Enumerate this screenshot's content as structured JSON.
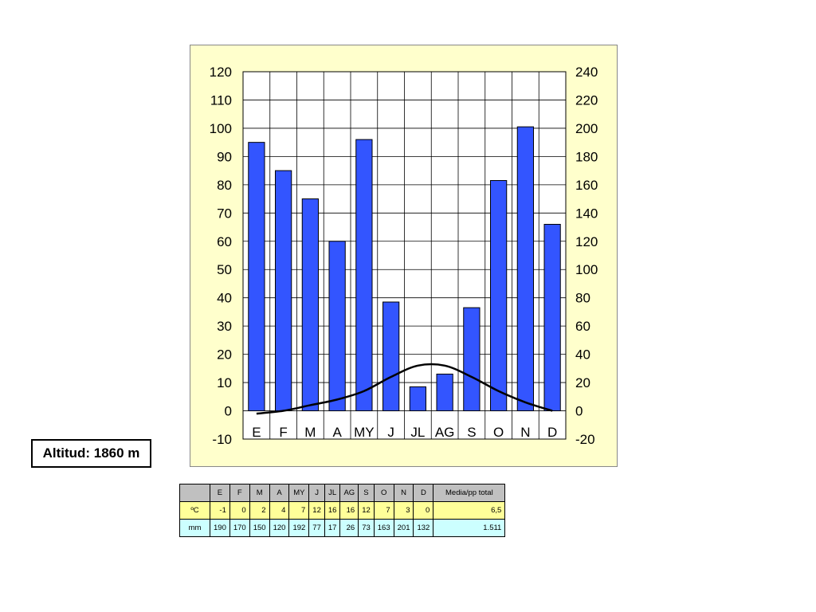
{
  "altitude_label": "Altitud: 1860 m",
  "colors": {
    "panel_bg": "#ffffcc",
    "bar_fill": "#3355ff",
    "line": "#000000",
    "header_bg": "#c0c0c0",
    "temp_row_bg": "#ffff99",
    "prec_row_bg": "#ccffff"
  },
  "chart_data": {
    "type": "bar",
    "categories": [
      "E",
      "F",
      "M",
      "A",
      "MY",
      "J",
      "JL",
      "AG",
      "S",
      "O",
      "N",
      "D"
    ],
    "series": [
      {
        "type": "bar",
        "axis": "right",
        "values": [
          190,
          170,
          150,
          120,
          192,
          77,
          17,
          26,
          73,
          163,
          201,
          132
        ]
      },
      {
        "type": "line",
        "axis": "left",
        "values": [
          -1,
          0,
          2,
          4,
          7,
          12,
          16,
          16,
          12,
          7,
          3,
          0
        ]
      }
    ],
    "left_axis": {
      "ylim": [
        -10,
        120
      ],
      "ticks": [
        "120",
        "110",
        "100",
        "90",
        "80",
        "70",
        "60",
        "50",
        "40",
        "30",
        "20",
        "10",
        "0",
        "-10"
      ]
    },
    "right_axis": {
      "ylim": [
        -20,
        240
      ],
      "ticks": [
        "240",
        "220",
        "200",
        "180",
        "160",
        "140",
        "120",
        "100",
        "80",
        "60",
        "40",
        "20",
        "0",
        "-20"
      ]
    },
    "grid": true
  },
  "table": {
    "header": [
      "",
      "E",
      "F",
      "M",
      "A",
      "MY",
      "J",
      "JL",
      "AG",
      "S",
      "O",
      "N",
      "D",
      "Media/pp total"
    ],
    "temp_row": [
      "ºC",
      "-1",
      "0",
      "2",
      "4",
      "7",
      "12",
      "16",
      "16",
      "12",
      "7",
      "3",
      "0",
      "6,5"
    ],
    "prec_row": [
      "mm",
      "190",
      "170",
      "150",
      "120",
      "192",
      "77",
      "17",
      "26",
      "73",
      "163",
      "201",
      "132",
      "1.511"
    ]
  }
}
